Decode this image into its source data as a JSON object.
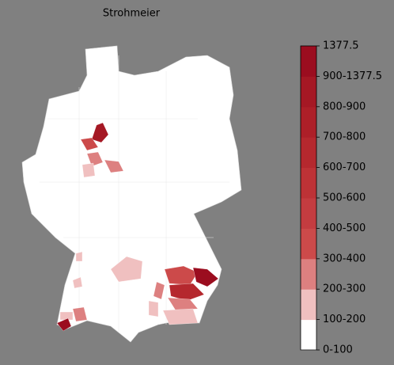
{
  "title": "Strohmeier",
  "colorbar": {
    "labels": [
      "0-100",
      "100-200",
      "200-300",
      "300-400",
      "400-500",
      "500-600",
      "600-700",
      "700-800",
      "800-900",
      "900-1377.5",
      "1377.5"
    ],
    "colors": [
      "#ffffff",
      "#f0c0c0",
      "#dd8080",
      "#cc4a4a",
      "#c43c40",
      "#bd3236",
      "#b5282e",
      "#ad1f28",
      "#a51824",
      "#9b0d1f"
    ]
  }
}
